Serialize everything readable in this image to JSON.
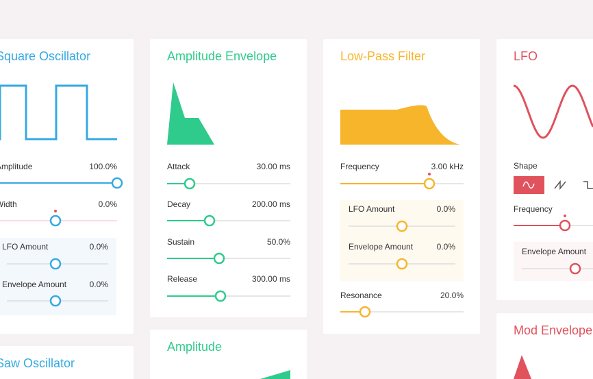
{
  "cards": [
    {
      "title": "Square Oscillator",
      "controls": [
        {
          "label": "Amplitude",
          "value": "100.0%"
        },
        {
          "label": "Width",
          "value": "0.0%"
        }
      ],
      "modulation": [
        {
          "label": "LFO Amount",
          "value": "0.0%"
        },
        {
          "label": "Envelope Amount",
          "value": "0.0%"
        }
      ]
    },
    {
      "title": "Saw Oscillator"
    },
    {
      "title": "Amplitude Envelope",
      "controls": [
        {
          "label": "Attack",
          "value": "30.00 ms"
        },
        {
          "label": "Decay",
          "value": "200.00 ms"
        },
        {
          "label": "Sustain",
          "value": "50.0%"
        },
        {
          "label": "Release",
          "value": "300.00 ms"
        }
      ]
    },
    {
      "title": "Amplitude"
    },
    {
      "title": "Low-Pass Filter",
      "controls": [
        {
          "label": "Frequency",
          "value": "3.00 kHz"
        },
        {
          "label": "Resonance",
          "value": "20.0%"
        }
      ],
      "modulation": [
        {
          "label": "LFO Amount",
          "value": "0.0%"
        },
        {
          "label": "Envelope Amount",
          "value": "0.0%"
        }
      ]
    },
    {
      "title": "LFO",
      "controls": [
        {
          "label": "Shape"
        },
        {
          "label": "Frequency"
        }
      ],
      "modulation": [
        {
          "label": "Envelope Amount"
        }
      ]
    },
    {
      "title": "Mod Envelope"
    }
  ]
}
